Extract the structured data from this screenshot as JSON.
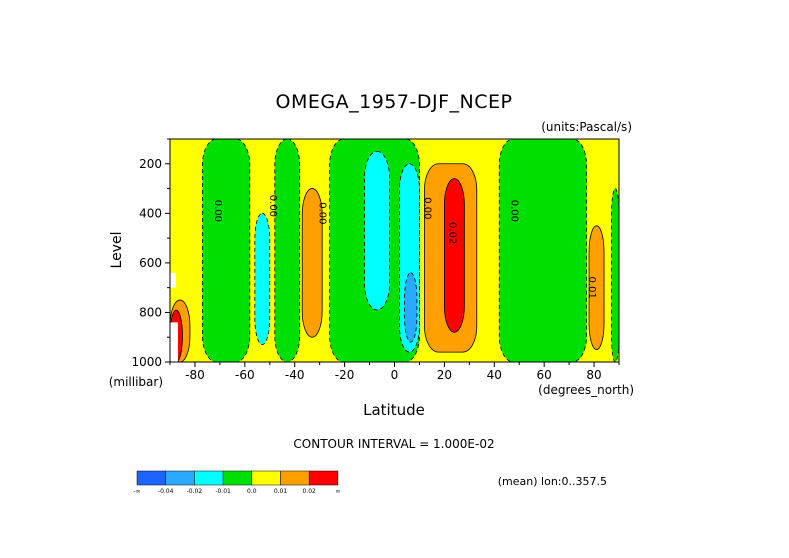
{
  "chart_data": {
    "type": "heatmap",
    "title": "OMEGA_1957-DJF_NCEP",
    "units": "(units:Pascal/s)",
    "xlabel": "Latitude",
    "x_units": "(degrees_north)",
    "ylabel": "Level",
    "y_units": "(millibar)",
    "xlim": [
      -90,
      90
    ],
    "ylim": [
      1000,
      100
    ],
    "y_reversed": true,
    "x_ticks": [
      -80,
      -60,
      -40,
      -20,
      0,
      20,
      40,
      60,
      80
    ],
    "y_ticks": [
      200,
      400,
      600,
      800,
      1000
    ],
    "contour_interval": "CONTOUR INTERVAL = 1.000E-02",
    "mean_note": "(mean) lon:0..357.5",
    "colorbar": {
      "labels": [
        "-∞",
        "-0.04",
        "-0.02",
        "-0.01",
        "0.0",
        "0.01",
        "0.02",
        "∞"
      ],
      "colors": [
        "#1a64ff",
        "#2aaaff",
        "#00ffff",
        "#00e000",
        "#ffff00",
        "#ffa000",
        "#ff0000"
      ]
    },
    "contour_labels": [
      {
        "text": "0.00",
        "lat": -72,
        "lev": 390
      },
      {
        "text": "0.00",
        "lat": -50,
        "lev": 370
      },
      {
        "text": "0.00",
        "lat": -30,
        "lev": 400
      },
      {
        "text": "0.00",
        "lat": 12,
        "lev": 380
      },
      {
        "text": "0.02",
        "lat": 22,
        "lev": 480
      },
      {
        "text": "0.00",
        "lat": 47,
        "lev": 390
      },
      {
        "text": "0.01",
        "lat": 78,
        "lev": 700
      }
    ],
    "regions": [
      {
        "level": "-0.01..0.0",
        "color": "#00e000",
        "lat": [
          -77,
          -58
        ],
        "lev": [
          100,
          1000
        ]
      },
      {
        "level": "-0.01..0.0",
        "color": "#00e000",
        "lat": [
          -48,
          -38
        ],
        "lev": [
          100,
          1000
        ]
      },
      {
        "level": "-0.01..0.0",
        "color": "#00e000",
        "lat": [
          -26,
          10
        ],
        "lev": [
          100,
          1000
        ]
      },
      {
        "level": "-0.01..0.0",
        "color": "#00e000",
        "lat": [
          42,
          77
        ],
        "lev": [
          100,
          1000
        ]
      },
      {
        "level": "-0.01..0.0",
        "color": "#00e000",
        "lat": [
          87,
          90
        ],
        "lev": [
          300,
          1000
        ]
      },
      {
        "level": "-0.02..-0.01",
        "color": "#00ffff",
        "lat": [
          -56,
          -50
        ],
        "lev": [
          400,
          930
        ]
      },
      {
        "level": "-0.02..-0.01",
        "color": "#00ffff",
        "lat": [
          -12,
          -2
        ],
        "lev": [
          150,
          790
        ]
      },
      {
        "level": "-0.02..-0.01",
        "color": "#00ffff",
        "lat": [
          2,
          10
        ],
        "lev": [
          200,
          960
        ]
      },
      {
        "level": "-0.04..-0.02",
        "color": "#2aaaff",
        "lat": [
          4,
          9
        ],
        "lev": [
          640,
          920
        ]
      },
      {
        "level": "0.01..0.02",
        "color": "#ffa000",
        "lat": [
          -37,
          -29
        ],
        "lev": [
          300,
          900
        ]
      },
      {
        "level": "0.01..0.02",
        "color": "#ffa000",
        "lat": [
          12,
          33
        ],
        "lev": [
          200,
          960
        ]
      },
      {
        "level": "0.01..0.02",
        "color": "#ffa000",
        "lat": [
          78,
          84
        ],
        "lev": [
          450,
          950
        ]
      },
      {
        "level": "0.01..0.02",
        "color": "#ffa000",
        "lat": [
          -90,
          -82
        ],
        "lev": [
          750,
          1000
        ]
      },
      {
        "level": "0.02..inf",
        "color": "#ff0000",
        "lat": [
          20,
          28
        ],
        "lev": [
          260,
          880
        ]
      },
      {
        "level": "0.02..inf",
        "color": "#ff0000",
        "lat": [
          -90,
          -85
        ],
        "lev": [
          790,
          1000
        ]
      }
    ]
  }
}
